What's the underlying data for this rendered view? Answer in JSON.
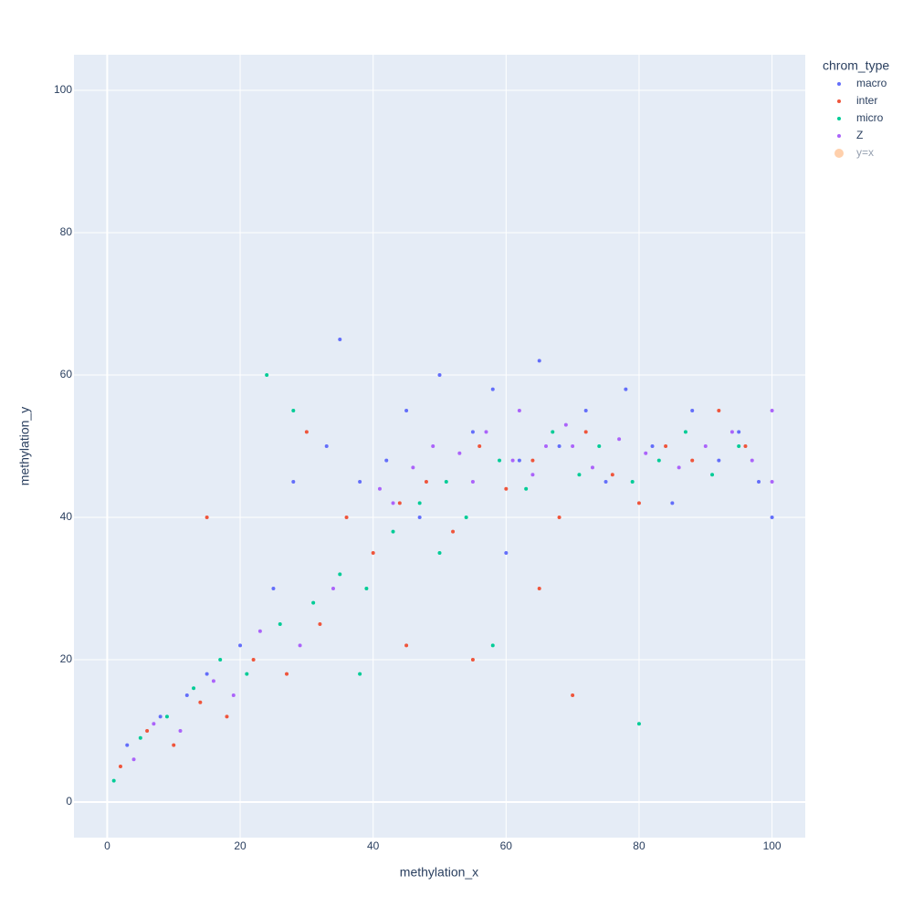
{
  "chart_data": {
    "type": "scatter",
    "x_label": "methylation_x",
    "y_label": "methylation_y",
    "legend_title": "chrom_type",
    "legend_position": "right",
    "grid": true,
    "xlim": [
      -5,
      105
    ],
    "ylim": [
      -5,
      105
    ],
    "xticks": [
      0,
      20,
      40,
      60,
      80,
      100
    ],
    "yticks": [
      0,
      20,
      40,
      60,
      80,
      100
    ],
    "series": [
      {
        "name": "macro",
        "color": "#636efa",
        "x": [
          3,
          8,
          12,
          15,
          20,
          25,
          28,
          33,
          38,
          42,
          45,
          50,
          55,
          58,
          62,
          65,
          68,
          72,
          75,
          78,
          82,
          85,
          88,
          92,
          95,
          98,
          100,
          35,
          47,
          60
        ],
        "y": [
          8,
          12,
          15,
          18,
          22,
          30,
          45,
          50,
          45,
          48,
          55,
          60,
          52,
          58,
          48,
          62,
          50,
          55,
          45,
          58,
          50,
          42,
          55,
          48,
          52,
          45,
          40,
          65,
          40,
          35
        ]
      },
      {
        "name": "inter",
        "color": "#EF553B",
        "x": [
          2,
          6,
          10,
          14,
          18,
          22,
          27,
          32,
          36,
          40,
          44,
          48,
          52,
          56,
          60,
          64,
          68,
          72,
          76,
          80,
          84,
          88,
          92,
          96,
          30,
          55,
          70,
          15,
          45,
          65
        ],
        "y": [
          5,
          10,
          8,
          14,
          12,
          20,
          18,
          25,
          40,
          35,
          42,
          45,
          38,
          50,
          44,
          48,
          40,
          52,
          46,
          42,
          50,
          48,
          55,
          50,
          52,
          20,
          15,
          40,
          22,
          30
        ]
      },
      {
        "name": "micro",
        "color": "#00cc96",
        "x": [
          1,
          5,
          9,
          13,
          17,
          21,
          26,
          31,
          35,
          39,
          43,
          47,
          51,
          54,
          59,
          63,
          67,
          71,
          74,
          79,
          83,
          87,
          91,
          95,
          50,
          28,
          38,
          58,
          80,
          24
        ],
        "y": [
          3,
          9,
          12,
          16,
          20,
          18,
          25,
          28,
          32,
          30,
          38,
          42,
          45,
          40,
          48,
          44,
          52,
          46,
          50,
          45,
          48,
          52,
          46,
          50,
          35,
          55,
          18,
          22,
          11,
          60
        ]
      },
      {
        "name": "Z",
        "color": "#ab63fa",
        "x": [
          4,
          7,
          11,
          16,
          19,
          23,
          29,
          34,
          41,
          46,
          49,
          53,
          57,
          61,
          64,
          66,
          69,
          73,
          77,
          81,
          86,
          90,
          94,
          97,
          100,
          100,
          55,
          43,
          62,
          70
        ],
        "y": [
          6,
          11,
          10,
          17,
          15,
          24,
          22,
          30,
          44,
          47,
          50,
          49,
          52,
          48,
          46,
          50,
          53,
          47,
          51,
          49,
          47,
          50,
          52,
          48,
          45,
          55,
          45,
          42,
          55,
          50
        ]
      },
      {
        "name": "y=x",
        "color": "#FFA15A",
        "hidden": true
      }
    ]
  }
}
